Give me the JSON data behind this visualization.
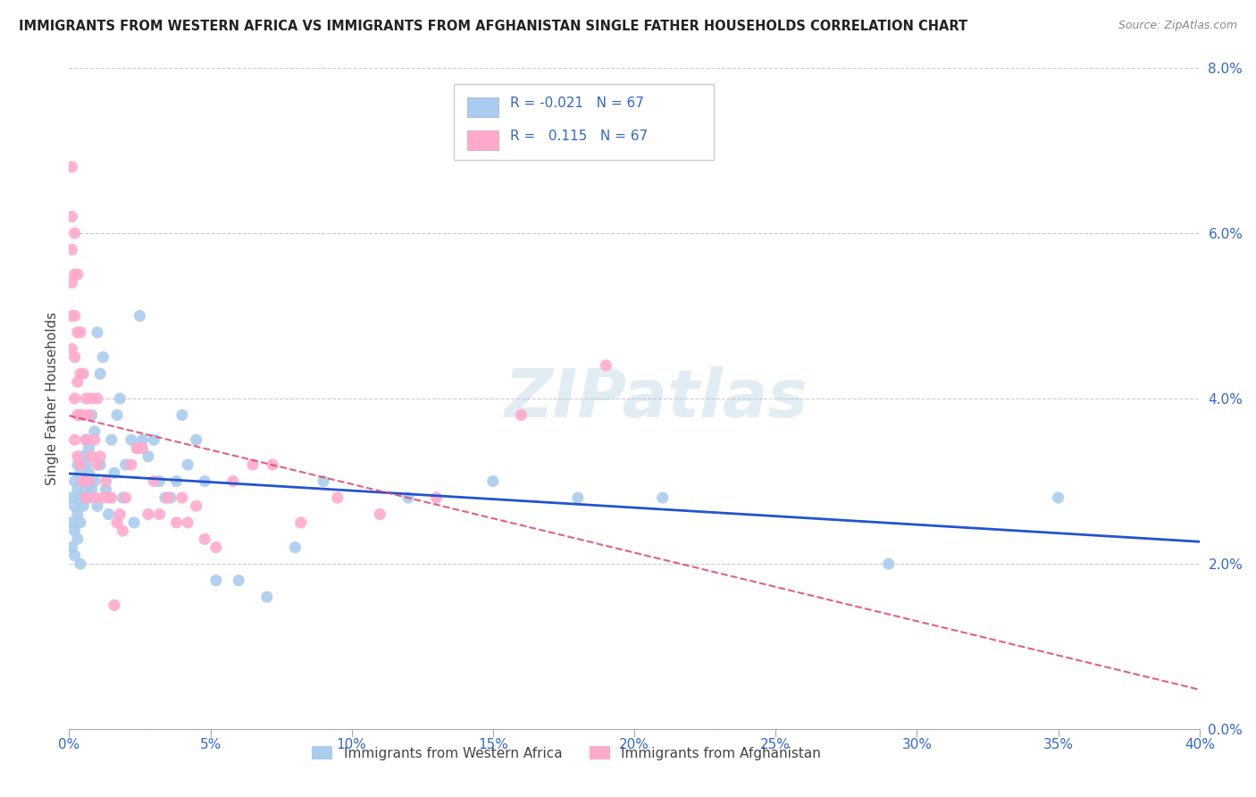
{
  "title": "IMMIGRANTS FROM WESTERN AFRICA VS IMMIGRANTS FROM AFGHANISTAN SINGLE FATHER HOUSEHOLDS CORRELATION CHART",
  "source": "Source: ZipAtlas.com",
  "ylabel": "Single Father Households",
  "watermark": "ZIPatlas",
  "xlim": [
    0.0,
    0.4
  ],
  "ylim": [
    0.0,
    0.08
  ],
  "xticks": [
    0.0,
    0.05,
    0.1,
    0.15,
    0.2,
    0.25,
    0.3,
    0.35,
    0.4
  ],
  "yticks": [
    0.0,
    0.02,
    0.04,
    0.06,
    0.08
  ],
  "legend_labels": [
    "Immigrants from Western Africa",
    "Immigrants from Afghanistan"
  ],
  "r_western_africa": -0.021,
  "n_western_africa": 67,
  "r_afghanistan": 0.115,
  "n_afghanistan": 67,
  "color_western_africa": "#aaccee",
  "color_afghanistan": "#ffaacc",
  "line_color_western_africa": "#2255cc",
  "line_color_afghanistan": "#dd4466",
  "background_color": "#ffffff",
  "grid_color": "#cccccc",
  "western_africa_x": [
    0.001,
    0.001,
    0.001,
    0.002,
    0.002,
    0.002,
    0.002,
    0.003,
    0.003,
    0.003,
    0.003,
    0.004,
    0.004,
    0.004,
    0.004,
    0.005,
    0.005,
    0.005,
    0.006,
    0.006,
    0.006,
    0.007,
    0.007,
    0.007,
    0.008,
    0.008,
    0.009,
    0.009,
    0.01,
    0.01,
    0.011,
    0.011,
    0.012,
    0.013,
    0.014,
    0.015,
    0.016,
    0.017,
    0.018,
    0.019,
    0.02,
    0.022,
    0.023,
    0.024,
    0.025,
    0.026,
    0.028,
    0.03,
    0.032,
    0.034,
    0.036,
    0.038,
    0.04,
    0.042,
    0.045,
    0.048,
    0.052,
    0.06,
    0.07,
    0.08,
    0.09,
    0.12,
    0.15,
    0.18,
    0.21,
    0.29,
    0.35
  ],
  "western_africa_y": [
    0.028,
    0.025,
    0.022,
    0.03,
    0.027,
    0.024,
    0.021,
    0.032,
    0.029,
    0.026,
    0.023,
    0.031,
    0.028,
    0.025,
    0.02,
    0.033,
    0.03,
    0.027,
    0.035,
    0.032,
    0.029,
    0.034,
    0.031,
    0.028,
    0.038,
    0.029,
    0.036,
    0.03,
    0.048,
    0.027,
    0.043,
    0.032,
    0.045,
    0.029,
    0.026,
    0.035,
    0.031,
    0.038,
    0.04,
    0.028,
    0.032,
    0.035,
    0.025,
    0.034,
    0.05,
    0.035,
    0.033,
    0.035,
    0.03,
    0.028,
    0.028,
    0.03,
    0.038,
    0.032,
    0.035,
    0.03,
    0.018,
    0.018,
    0.016,
    0.022,
    0.03,
    0.028,
    0.03,
    0.028,
    0.028,
    0.02,
    0.028
  ],
  "afghanistan_x": [
    0.001,
    0.001,
    0.001,
    0.001,
    0.001,
    0.001,
    0.002,
    0.002,
    0.002,
    0.002,
    0.002,
    0.002,
    0.003,
    0.003,
    0.003,
    0.003,
    0.003,
    0.004,
    0.004,
    0.004,
    0.004,
    0.005,
    0.005,
    0.005,
    0.006,
    0.006,
    0.006,
    0.007,
    0.007,
    0.008,
    0.008,
    0.009,
    0.009,
    0.01,
    0.01,
    0.011,
    0.012,
    0.013,
    0.014,
    0.015,
    0.016,
    0.017,
    0.018,
    0.019,
    0.02,
    0.022,
    0.024,
    0.026,
    0.028,
    0.03,
    0.032,
    0.035,
    0.038,
    0.04,
    0.042,
    0.045,
    0.048,
    0.052,
    0.058,
    0.065,
    0.072,
    0.082,
    0.095,
    0.11,
    0.13,
    0.16,
    0.19
  ],
  "afghanistan_y": [
    0.068,
    0.062,
    0.058,
    0.054,
    0.05,
    0.046,
    0.06,
    0.055,
    0.05,
    0.045,
    0.04,
    0.035,
    0.055,
    0.048,
    0.042,
    0.038,
    0.033,
    0.048,
    0.043,
    0.038,
    0.032,
    0.043,
    0.038,
    0.03,
    0.04,
    0.035,
    0.028,
    0.038,
    0.03,
    0.04,
    0.033,
    0.035,
    0.028,
    0.04,
    0.032,
    0.033,
    0.028,
    0.03,
    0.028,
    0.028,
    0.015,
    0.025,
    0.026,
    0.024,
    0.028,
    0.032,
    0.034,
    0.034,
    0.026,
    0.03,
    0.026,
    0.028,
    0.025,
    0.028,
    0.025,
    0.027,
    0.023,
    0.022,
    0.03,
    0.032,
    0.032,
    0.025,
    0.028,
    0.026,
    0.028,
    0.038,
    0.044
  ]
}
